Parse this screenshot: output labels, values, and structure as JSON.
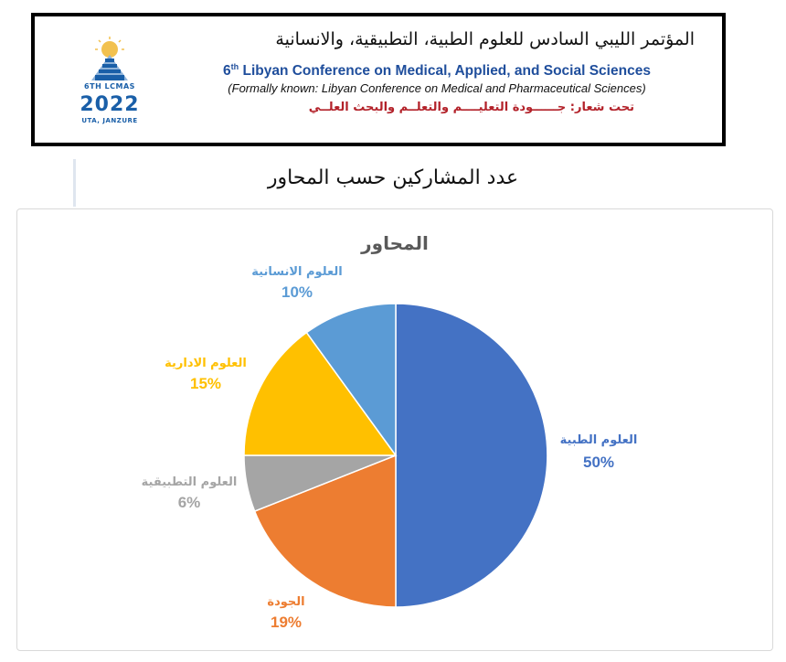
{
  "banner": {
    "title_ar": "المؤتمر الليبي السادس للعلوم الطبية، التطبيقية، والانسانية",
    "title_en_prefix": "6",
    "title_en_sup": "th",
    "title_en_rest": " Libyan Conference on Medical, Applied, and Social Sciences",
    "subtitle_en": "(Formally known: Libyan Conference on Medical and Pharmaceutical Sciences)",
    "slogan_ar": "تحت شعار: جــــــودة التعليــــم والتعلــم والبحث العلــي",
    "logo": {
      "top_text": "6TH LCMAS",
      "year": "2022",
      "bottom_text": "UTA, JANZURE"
    }
  },
  "page_heading": "عدد المشاركين حسب المحاور",
  "colors": {
    "medical": "#4472c4",
    "quality": "#ed7d31",
    "applied": "#a5a5a5",
    "admin": "#ffc000",
    "humanities": "#5b9bd5",
    "logo_blue": "#1a5fa8",
    "slogan_red": "#b3222a"
  },
  "chart_data": {
    "type": "pie",
    "title": "المحاور",
    "legend": "none",
    "slices": [
      {
        "label": "العلوم الطبية",
        "value": 50,
        "display": "50%",
        "color": "#4472c4"
      },
      {
        "label": "الجودة",
        "value": 19,
        "display": "19%",
        "color": "#ed7d31"
      },
      {
        "label": "العلوم التطبيقية",
        "value": 6,
        "display": "6%",
        "color": "#a5a5a5"
      },
      {
        "label": "العلوم الادارية",
        "value": 15,
        "display": "15%",
        "color": "#ffc000"
      },
      {
        "label": "العلوم الانسانية",
        "value": 10,
        "display": "10%",
        "color": "#5b9bd5"
      }
    ]
  }
}
